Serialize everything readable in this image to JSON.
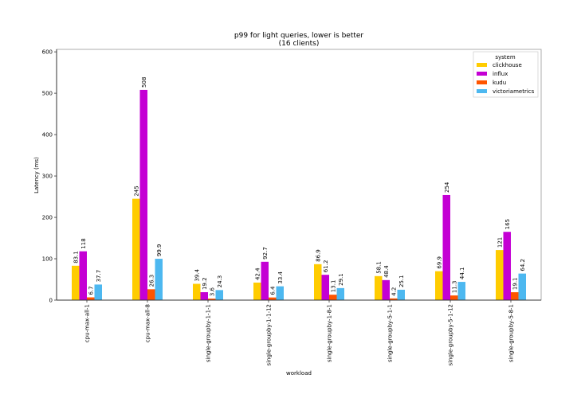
{
  "chart_data": {
    "type": "bar",
    "title": "p99 for light queries, lower is better",
    "subtitle": "(16 clients)",
    "xlabel": "workload",
    "ylabel": "Latency (ms)",
    "ylim": [
      0,
      606
    ],
    "yticks": [
      0,
      100,
      200,
      300,
      400,
      500,
      600
    ],
    "grid": false,
    "legend": {
      "title": "system",
      "placement": "top-right"
    },
    "categories": [
      "cpu-max-all-1",
      "cpu-max-all-8",
      "single-groupby-1-1-1",
      "single-groupby-1-1-12",
      "single-groupby-1-8-1",
      "single-groupby-5-1-1",
      "single-groupby-5-1-12",
      "single-groupby-5-8-1"
    ],
    "series": [
      {
        "name": "clickhouse",
        "color": "#ffcc00",
        "values": [
          83.1,
          245,
          39.4,
          42.4,
          86.9,
          58.1,
          69.9,
          121
        ],
        "labels": [
          "83.1",
          "245",
          "39.4",
          "42.4",
          "86.9",
          "58.1",
          "69.9",
          "121"
        ]
      },
      {
        "name": "influx",
        "color": "#c400d4",
        "values": [
          118,
          508,
          19.2,
          92.7,
          61.2,
          48.4,
          254,
          165
        ],
        "labels": [
          "118",
          "508",
          "19.2",
          "92.7",
          "61.2",
          "48.4",
          "254",
          "165"
        ]
      },
      {
        "name": "kudu",
        "color": "#ff5500",
        "values": [
          6.7,
          26.3,
          3.6,
          6.4,
          13.1,
          4.2,
          11.3,
          19.1
        ],
        "labels": [
          "6.7",
          "26.3",
          "3.6",
          "6.4",
          "13.1",
          "4.2",
          "11.3",
          "19.1"
        ]
      },
      {
        "name": "victoriametrics",
        "color": "#4db8f0",
        "values": [
          37.7,
          99.9,
          24.3,
          33.4,
          29.1,
          25.1,
          44.1,
          64.2
        ],
        "labels": [
          "37.7",
          "99.9",
          "24.3",
          "33.4",
          "29.1",
          "25.1",
          "44.1",
          "64.2"
        ]
      }
    ]
  }
}
